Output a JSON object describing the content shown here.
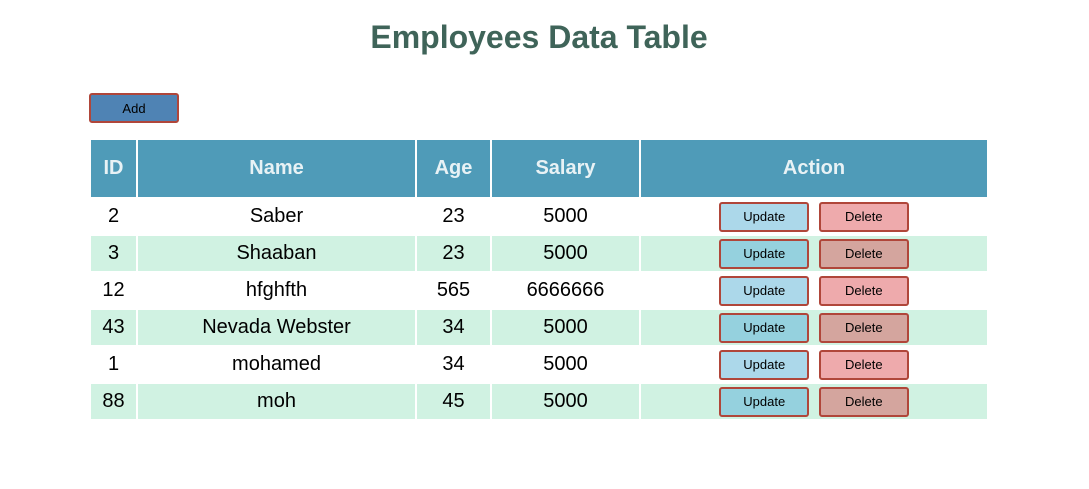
{
  "title": "Employees Data Table",
  "add_label": "Add",
  "columns": [
    "ID",
    "Name",
    "Age",
    "Salary",
    "Action"
  ],
  "rows": [
    {
      "id": "2",
      "name": "Saber",
      "age": "23",
      "salary": "5000",
      "update_label": "Update",
      "delete_label": "Delete"
    },
    {
      "id": "3",
      "name": "Shaaban",
      "age": "23",
      "salary": "5000",
      "update_label": "Update",
      "delete_label": "Delete"
    },
    {
      "id": "12",
      "name": "hfghfth",
      "age": "565",
      "salary": "6666666",
      "update_label": "Update",
      "delete_label": "Delete"
    },
    {
      "id": "43",
      "name": "Nevada Webster",
      "age": "34",
      "salary": "5000",
      "update_label": "Update",
      "delete_label": "Delete"
    },
    {
      "id": "1",
      "name": "mohamed",
      "age": "34",
      "salary": "5000",
      "update_label": "Update",
      "delete_label": "Delete"
    },
    {
      "id": "88",
      "name": "moh",
      "age": "45",
      "salary": "5000",
      "update_label": "Update",
      "delete_label": "Delete"
    }
  ],
  "colors": {
    "title": "#3f6459",
    "header_bg": "#4f9bb8",
    "row_alt_bg": "#d0f2e2",
    "add_bg": "#4f83b4",
    "button_border": "#b0463a"
  }
}
